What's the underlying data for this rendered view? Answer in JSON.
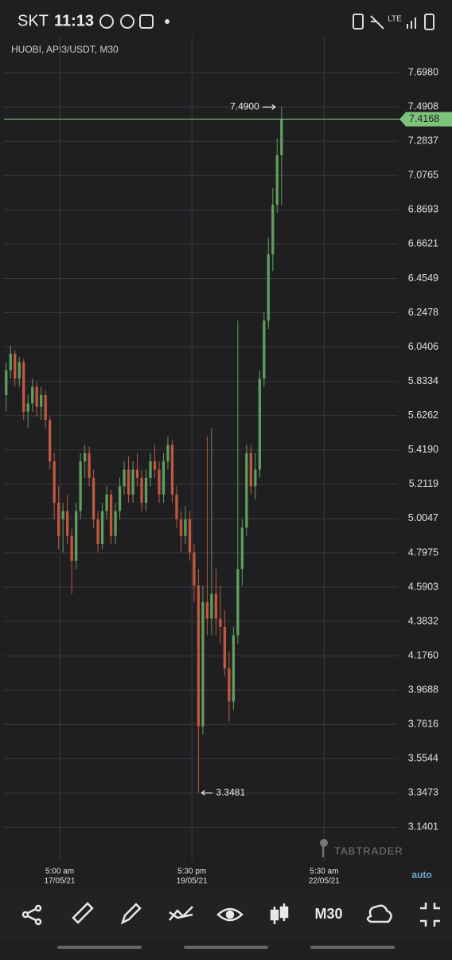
{
  "status_bar": {
    "carrier": "SKT",
    "time": "11:13",
    "network": "LTE"
  },
  "chart_data": {
    "type": "candlestick",
    "title": "HUOBI, API3/USDT, M30",
    "up_color": "#5f9e5c",
    "down_color": "#c0573f",
    "open": [
      5.75,
      5.9,
      6.0,
      5.85,
      5.95,
      5.65,
      5.7,
      5.8,
      5.68,
      5.75,
      5.6,
      5.35,
      5.1,
      5.0,
      5.05,
      4.9,
      4.75,
      5.05,
      5.35,
      5.4,
      5.25,
      5.0,
      4.85,
      5.05,
      5.15,
      4.9,
      5.05,
      5.2,
      5.3,
      5.15,
      5.3,
      5.25,
      5.1,
      5.25,
      5.35,
      5.3,
      5.15,
      5.35,
      5.45,
      5.15,
      5.0,
      4.9,
      5.0,
      4.8,
      4.6,
      3.75,
      4.5,
      4.4,
      4.55,
      4.4,
      4.35,
      4.1,
      3.9,
      4.3,
      4.7,
      4.95,
      5.4,
      5.2,
      5.3,
      5.85,
      6.2,
      6.6,
      6.9,
      7.2
    ],
    "high": [
      5.95,
      6.05,
      6.02,
      5.98,
      5.97,
      5.75,
      5.85,
      5.83,
      5.8,
      5.78,
      5.62,
      5.4,
      5.2,
      5.1,
      5.15,
      4.95,
      5.1,
      5.4,
      5.45,
      5.44,
      5.3,
      5.05,
      5.1,
      5.2,
      5.18,
      5.1,
      5.25,
      5.35,
      5.38,
      5.35,
      5.4,
      5.3,
      5.3,
      5.4,
      5.45,
      5.35,
      5.4,
      5.5,
      5.48,
      5.2,
      5.05,
      5.08,
      5.05,
      4.85,
      4.7,
      4.6,
      5.5,
      5.55,
      4.7,
      4.6,
      4.45,
      4.2,
      4.35,
      6.2,
      5.0,
      5.45,
      5.45,
      5.4,
      5.9,
      6.25,
      6.7,
      7.0,
      7.3,
      7.49
    ],
    "low": [
      5.65,
      5.85,
      5.8,
      5.8,
      5.6,
      5.55,
      5.65,
      5.62,
      5.6,
      5.55,
      5.3,
      5.0,
      4.82,
      4.8,
      4.85,
      4.55,
      4.7,
      5.0,
      5.25,
      5.2,
      4.95,
      4.8,
      4.82,
      5.0,
      4.85,
      4.85,
      5.0,
      5.15,
      5.1,
      5.1,
      5.2,
      5.05,
      5.05,
      5.2,
      5.25,
      5.1,
      5.1,
      5.3,
      5.1,
      4.95,
      4.8,
      4.85,
      4.75,
      4.5,
      3.3481,
      3.7,
      4.3,
      4.3,
      4.3,
      4.25,
      4.05,
      3.78,
      3.85,
      4.25,
      4.6,
      4.9,
      5.15,
      5.12,
      5.25,
      5.8,
      6.15,
      6.5,
      6.85,
      6.9
    ],
    "close": [
      5.9,
      6.0,
      5.85,
      5.95,
      5.65,
      5.7,
      5.8,
      5.68,
      5.75,
      5.6,
      5.35,
      5.1,
      4.9,
      5.05,
      4.9,
      4.75,
      5.05,
      5.35,
      5.4,
      5.25,
      5.0,
      4.85,
      5.05,
      5.15,
      4.9,
      5.05,
      5.2,
      5.3,
      5.15,
      5.3,
      5.25,
      5.1,
      5.25,
      5.35,
      5.3,
      5.15,
      5.35,
      5.45,
      5.15,
      5.0,
      4.9,
      5.0,
      4.8,
      4.6,
      3.75,
      4.5,
      4.4,
      4.55,
      4.4,
      4.35,
      4.1,
      3.9,
      4.3,
      4.7,
      4.95,
      5.4,
      5.2,
      5.3,
      5.85,
      6.2,
      6.6,
      6.9,
      7.2,
      7.4168
    ],
    "xlim": [
      0,
      102.5
    ],
    "ylim": [
      2.94,
      7.92
    ],
    "yticks": [
      {
        "value": 7.698,
        "label": "7.6980"
      },
      7.4908,
      7.2837,
      7.0765,
      6.8693,
      6.6621,
      6.4549,
      6.2478,
      6.0406,
      5.8334,
      5.6262,
      {
        "value": 5.419,
        "label": "5.4190"
      },
      5.2119,
      5.0047,
      4.7975,
      4.5903,
      4.3832,
      {
        "value": 4.176,
        "label": "4.1760"
      },
      3.9688,
      3.7616,
      3.5544,
      3.3473,
      3.1401
    ],
    "xticks": [
      {
        "value": 12.75,
        "label": "5:00 am",
        "date": "17/05/21"
      },
      {
        "value": 43,
        "label": "5:30 pm",
        "date": "19/05/21"
      },
      {
        "value": 73.25,
        "label": "5:30 am",
        "date": "22/05/21"
      }
    ],
    "high_marker": {
      "value": 7.49,
      "label": "7.4900",
      "index": 63
    },
    "low_marker": {
      "value": 3.3481,
      "label": "3.3481",
      "index": 44
    },
    "last_price": {
      "value": 7.4168,
      "label": "7.4168",
      "color": "#7cc47a"
    },
    "grid": true,
    "watermark": "TABTRADER"
  },
  "toolbar": {
    "timeframe": "M30",
    "scale_mode": "auto"
  }
}
